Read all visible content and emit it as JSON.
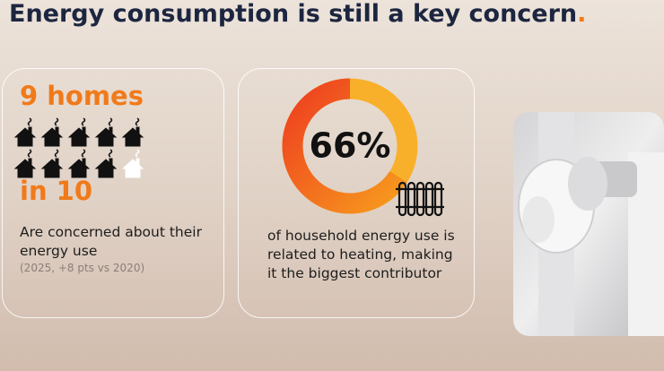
{
  "title": "Energy consumption is still a key concern",
  "title_mark": ".",
  "card1": {
    "headline_top": "9 homes",
    "headline_bottom": "in 10",
    "text": "Are concerned about their energy use",
    "note": "(2025, +8 pts vs 2020)"
  },
  "card2": {
    "value": 66,
    "value_label": "66%",
    "text": "of household energy use is related to heating, making it the biggest contributor"
  }
}
